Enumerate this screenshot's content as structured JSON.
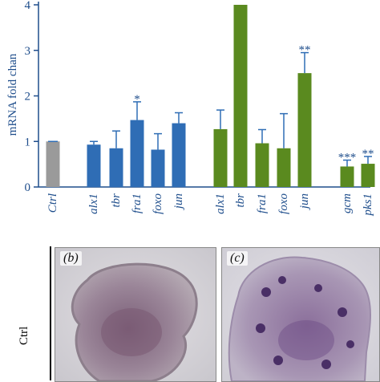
{
  "chart_data": {
    "type": "bar",
    "ylabel": "mRNA fold chan",
    "ylim": [
      0,
      4
    ],
    "yticks": [
      0,
      1,
      2,
      3,
      4
    ],
    "grid": false,
    "categories": [
      "Ctrl",
      "alx1",
      "tbr",
      "fra1",
      "foxo",
      "jun",
      "alx1",
      "tbr",
      "fra1",
      "foxo",
      "jun",
      "gcm",
      "pks1"
    ],
    "groups": [
      {
        "color": "#9a9a9a",
        "categories": [
          "Ctrl"
        ],
        "values": [
          1.0
        ],
        "errors": [
          0.0
        ],
        "significance": [
          ""
        ]
      },
      {
        "color": "#2f6db5",
        "categories": [
          "alx1",
          "tbr",
          "fra1",
          "foxo",
          "jun"
        ],
        "values": [
          0.93,
          0.85,
          1.47,
          0.82,
          1.4
        ],
        "errors": [
          0.07,
          0.38,
          0.4,
          0.35,
          0.23
        ],
        "significance": [
          "",
          "",
          "*",
          "",
          ""
        ]
      },
      {
        "color": "#5a8a1f",
        "categories": [
          "alx1",
          "tbr",
          "fra1",
          "foxo",
          "jun",
          "gcm",
          "pks1"
        ],
        "values": [
          1.27,
          4.0,
          0.96,
          0.85,
          2.5,
          0.45,
          0.51
        ],
        "errors": [
          0.42,
          0.0,
          0.3,
          0.76,
          0.45,
          0.14,
          0.16
        ],
        "significance": [
          "",
          "",
          "",
          "",
          "**",
          "***",
          "**"
        ]
      }
    ]
  },
  "panels": [
    {
      "label": "(b)"
    },
    {
      "label": "(c)"
    }
  ],
  "row_label": "Ctrl",
  "colors": {
    "axis": "#1f4e8c",
    "error_bar": "#2f6db5"
  }
}
